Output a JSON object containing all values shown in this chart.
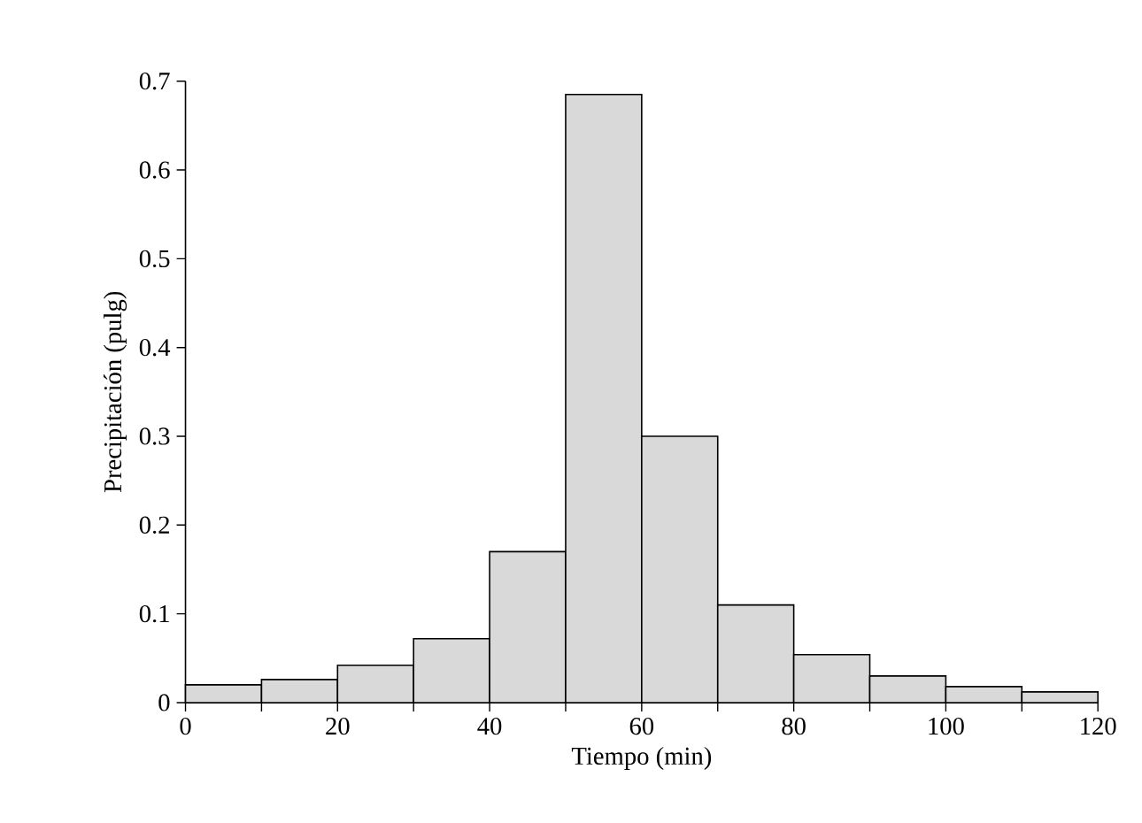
{
  "chart_data": {
    "type": "histogram",
    "xlabel": "Tiempo (min)",
    "ylabel": "Precipitación (pulg)",
    "bins": [
      0,
      10,
      20,
      30,
      40,
      50,
      60,
      70,
      80,
      90,
      100,
      110,
      120
    ],
    "values": [
      0.02,
      0.026,
      0.042,
      0.072,
      0.17,
      0.685,
      0.3,
      0.11,
      0.054,
      0.03,
      0.018,
      0.012
    ],
    "color": "#d9d9d9",
    "xlim": [
      0,
      120
    ],
    "ylim": [
      0,
      0.7
    ],
    "xticks": [
      0,
      {
        "value": 10,
        "label": null
      },
      20,
      {
        "value": 30,
        "label": null
      },
      40,
      {
        "value": 50,
        "label": null
      },
      60,
      {
        "value": 70,
        "label": null
      },
      80,
      {
        "value": 90,
        "label": null
      },
      100,
      {
        "value": 110,
        "label": null
      },
      120
    ],
    "yticks": [
      0,
      0.1,
      0.2,
      0.3,
      0.4,
      0.5,
      0.6,
      0.7
    ],
    "grid": false
  }
}
